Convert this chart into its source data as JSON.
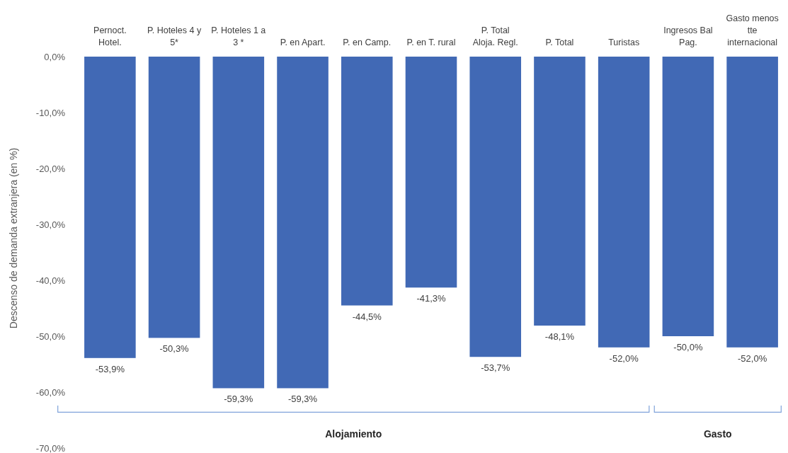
{
  "chart_data": {
    "type": "bar",
    "ylabel": "Descenso de demanda extranjera (en %)",
    "categories": [
      "Pernoct.\nHotel.",
      "P. Hoteles 4 y\n5*",
      "P. Hoteles 1 a\n3 *",
      "P. en Apart.",
      "P. en Camp.",
      "P. en T. rural",
      "P. Total\nAloja. Regl.",
      "P. Total",
      "Turistas",
      "Ingresos Bal\nPag.",
      "Gasto menos\ntte\ninternacional"
    ],
    "values": [
      -53.9,
      -50.3,
      -59.3,
      -59.3,
      -44.5,
      -41.3,
      -53.7,
      -48.1,
      -52.0,
      -50.0,
      -52.0
    ],
    "value_labels": [
      "-53,9%",
      "-50,3%",
      "-59,3%",
      "-59,3%",
      "-44,5%",
      "-41,3%",
      "-53,7%",
      "-48,1%",
      "-52,0%",
      "-50,0%",
      "-52,0%"
    ],
    "color": "#4169b5",
    "ylim": [
      -70,
      0
    ],
    "yticks": [
      {
        "value": 0,
        "label": "0,0%"
      },
      {
        "value": -10,
        "label": "-10,0%"
      },
      {
        "value": -20,
        "label": "-20,0%"
      },
      {
        "value": -30,
        "label": "-30,0%"
      },
      {
        "value": -40,
        "label": "-40,0%"
      },
      {
        "value": -50,
        "label": "-50,0%"
      },
      {
        "value": -60,
        "label": "-60,0%"
      },
      {
        "value": -70,
        "label": "-70,0%"
      }
    ],
    "grid": false,
    "annotations": [
      "Alojamiento",
      "Gasto"
    ]
  }
}
